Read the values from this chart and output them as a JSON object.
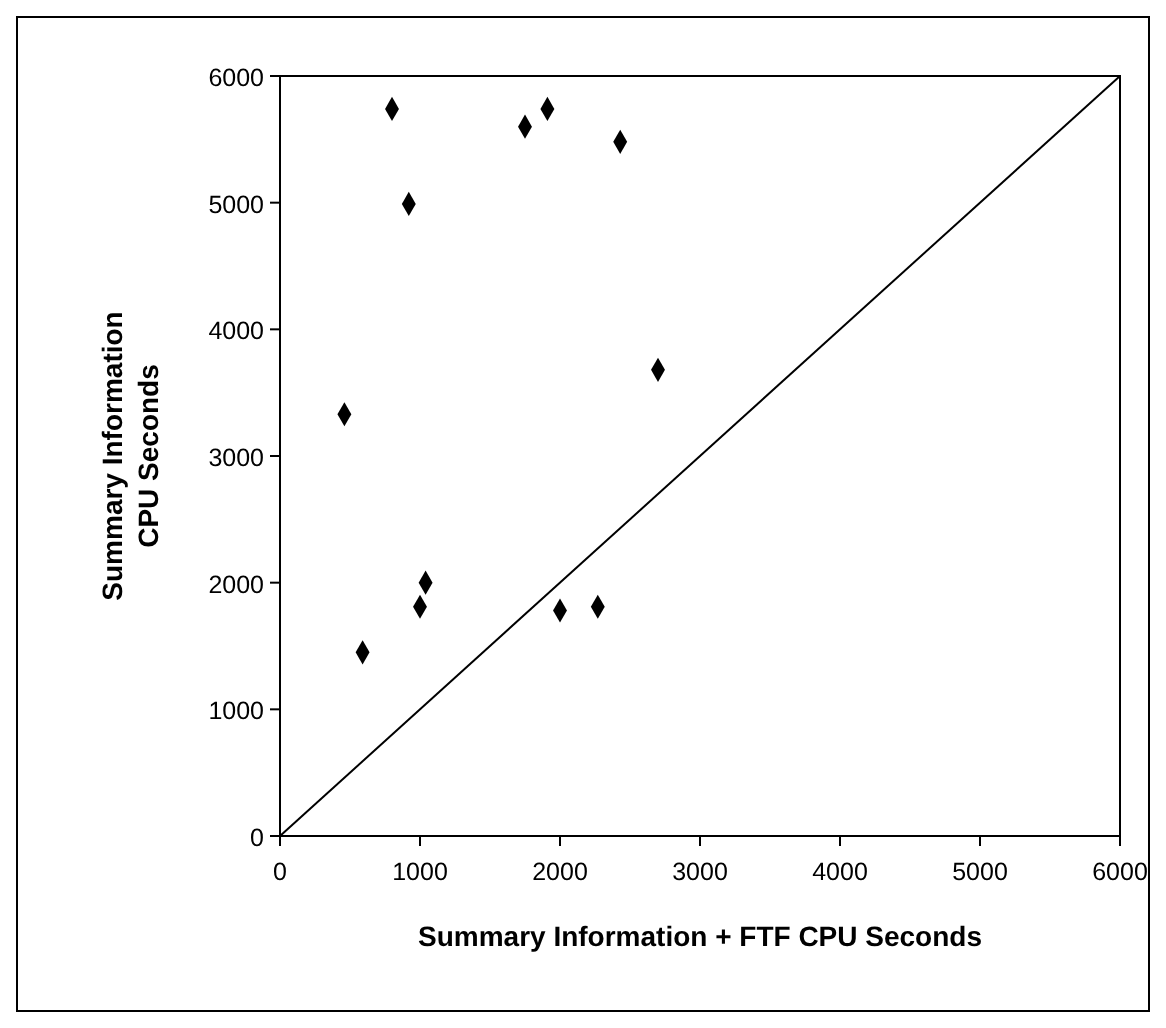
{
  "chart_data": {
    "type": "scatter",
    "xlabel": "Summary Information + FTF CPU Seconds",
    "ylabel": "Summary Information\nCPU Seconds",
    "xlim": [
      0,
      6000
    ],
    "ylim": [
      0,
      6000
    ],
    "xticks": [
      0,
      1000,
      2000,
      3000,
      4000,
      5000,
      6000
    ],
    "yticks": [
      0,
      1000,
      2000,
      3000,
      4000,
      5000,
      6000
    ],
    "marker": "diamond",
    "grid": false,
    "series": [
      {
        "color": "#000000",
        "x": [
          460,
          590,
          800,
          920,
          1000,
          1040,
          1750,
          1910,
          2000,
          2270,
          2430,
          2700
        ],
        "values": [
          3330,
          1450,
          5740,
          4990,
          1810,
          2000,
          5600,
          5740,
          1780,
          1810,
          5480,
          3680
        ]
      },
      {
        "type": "line",
        "color": "#000000",
        "marker": "none",
        "x": [
          0,
          6000
        ],
        "values": [
          0,
          6000
        ]
      }
    ]
  }
}
